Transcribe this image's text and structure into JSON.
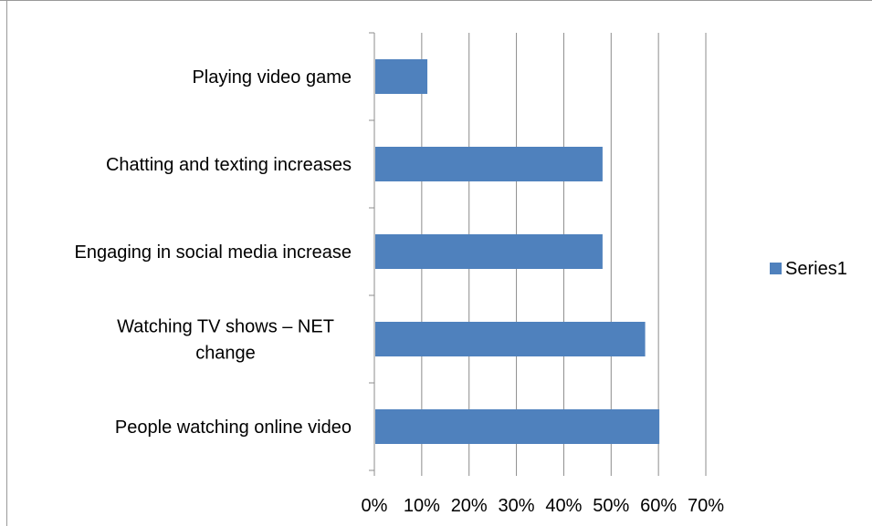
{
  "chart_data": {
    "type": "bar",
    "orientation": "horizontal",
    "categories": [
      "People watching online video",
      "Watching TV shows – NET change",
      "Engaging in social media increase",
      "Chatting and texting increases",
      "Playing video game"
    ],
    "category_label_lines": [
      [
        "People watching online video"
      ],
      [
        "Watching TV shows – NET",
        "change"
      ],
      [
        "Engaging in social media increase"
      ],
      [
        "Chatting and texting increases"
      ],
      [
        "Playing video game"
      ]
    ],
    "series": [
      {
        "name": "Series1",
        "values": [
          0.6,
          0.57,
          0.48,
          0.48,
          0.11
        ],
        "color": "#4F81BD"
      }
    ],
    "xlim": [
      0,
      0.7
    ],
    "x_ticks": [
      0,
      0.1,
      0.2,
      0.3,
      0.4,
      0.5,
      0.6,
      0.7
    ],
    "x_tick_labels": [
      "0%",
      "10%",
      "20%",
      "30%",
      "40%",
      "50%",
      "60%",
      "70%"
    ],
    "grid": "vertical",
    "legend": {
      "position": "right",
      "entries": [
        "Series1"
      ]
    },
    "title": "",
    "xlabel": "",
    "ylabel": ""
  },
  "colors": {
    "bar": "#4F81BD",
    "grid": "#8c8c8c",
    "axis": "#8c8c8c"
  }
}
